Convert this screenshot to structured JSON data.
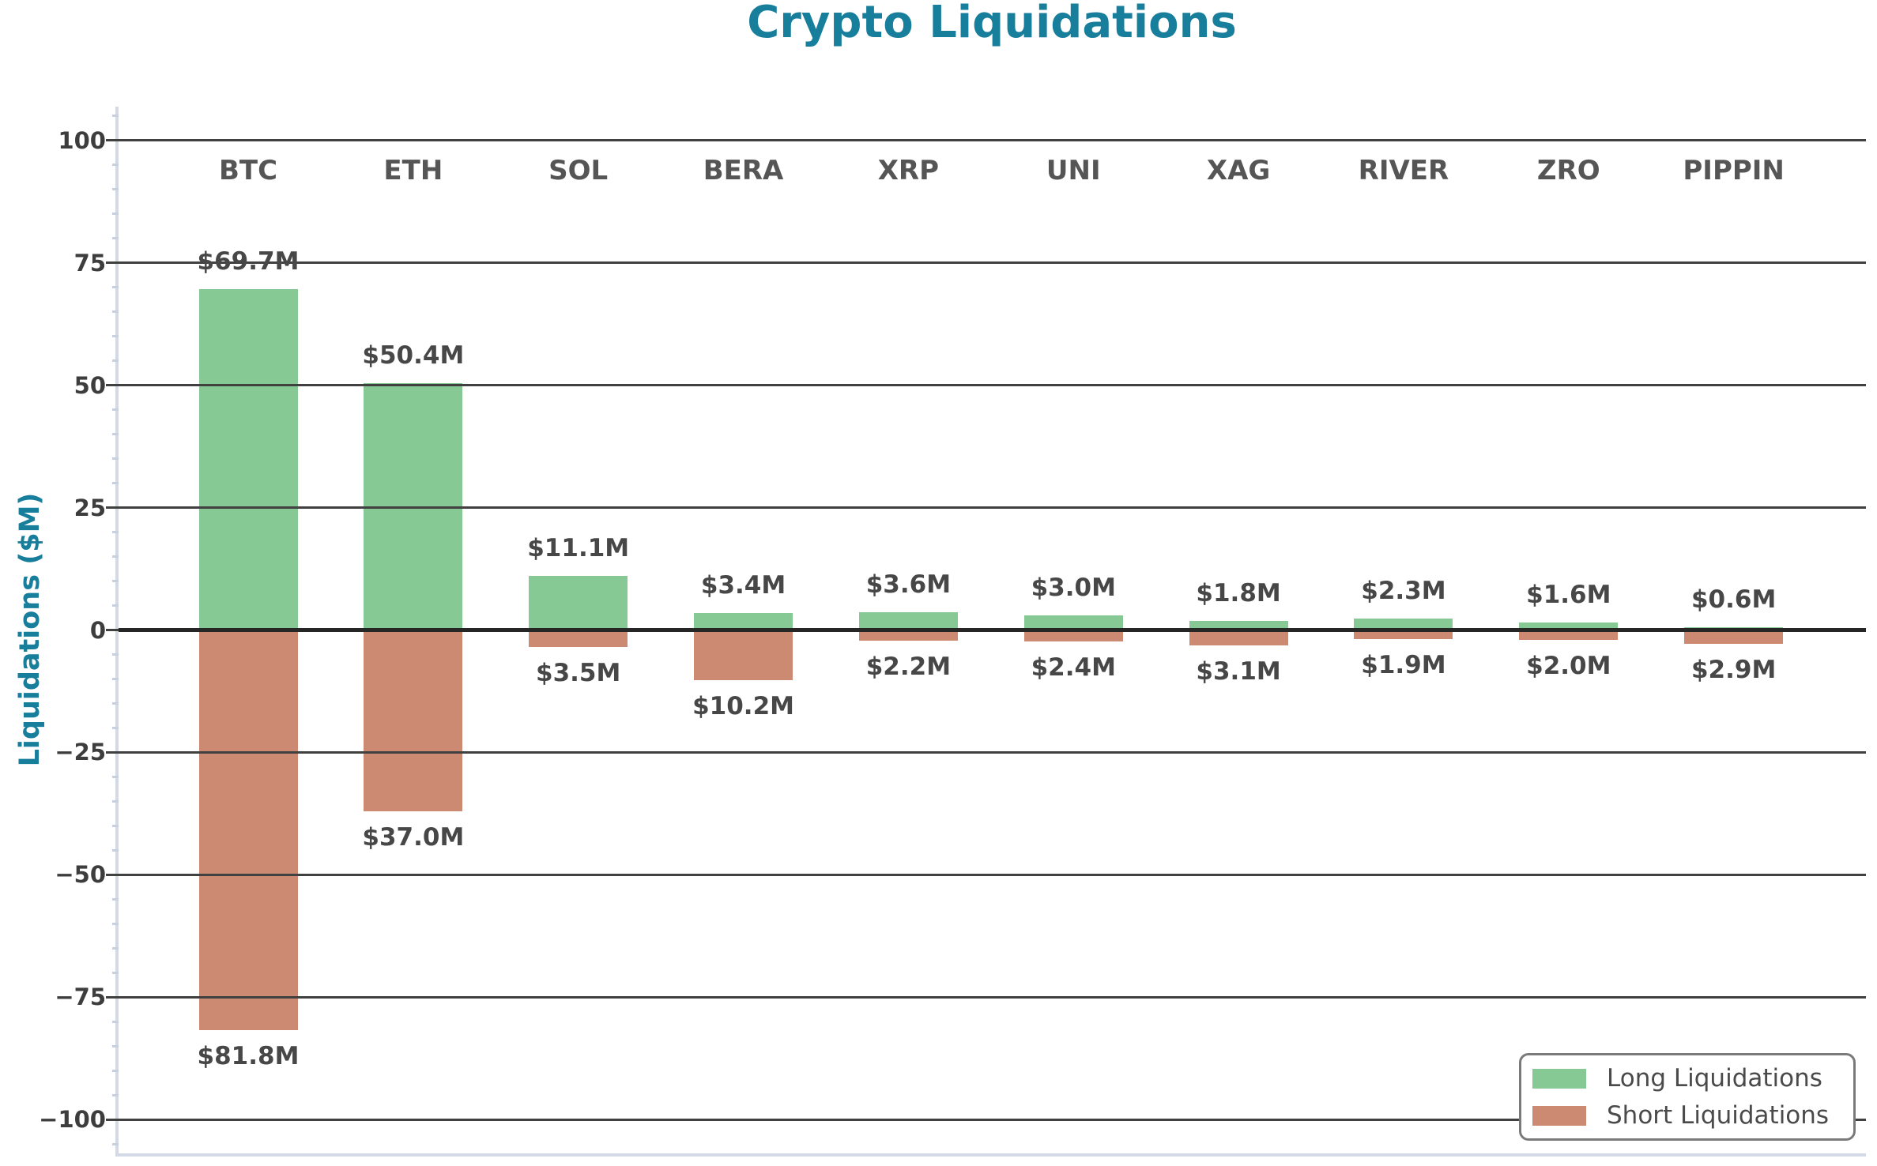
{
  "chart_data": {
    "type": "bar",
    "title": "Crypto Liquidations",
    "ylabel": "Liquidations ($M)",
    "categories": [
      "BTC",
      "ETH",
      "SOL",
      "BERA",
      "XRP",
      "UNI",
      "XAG",
      "RIVER",
      "ZRO",
      "PIPPIN"
    ],
    "series": [
      {
        "name": "Long Liquidations",
        "direction": "up",
        "color": "#86c994",
        "values": [
          69.7,
          50.4,
          11.1,
          3.4,
          3.6,
          3.0,
          1.8,
          2.3,
          1.6,
          0.6
        ],
        "labels": [
          "$69.7M",
          "$50.4M",
          "$11.1M",
          "$3.4M",
          "$3.6M",
          "$3.0M",
          "$1.8M",
          "$2.3M",
          "$1.6M",
          "$0.6M"
        ]
      },
      {
        "name": "Short Liquidations",
        "direction": "down",
        "color": "#cb8a71",
        "values": [
          81.8,
          37.0,
          3.5,
          10.2,
          2.2,
          2.4,
          3.1,
          1.9,
          2.0,
          2.9
        ],
        "labels": [
          "$81.8M",
          "$37.0M",
          "$3.5M",
          "$10.2M",
          "$2.2M",
          "$2.4M",
          "$3.1M",
          "$1.9M",
          "$2.0M",
          "$2.9M"
        ]
      }
    ],
    "yticks": [
      100,
      75,
      50,
      25,
      0,
      -25,
      -50,
      -75,
      -100
    ],
    "minor_tick_step": 5,
    "ylim": [
      -106.9,
      106.9
    ],
    "grid": true,
    "legend_position": "lower right"
  },
  "colors": {
    "title": "#177e9b",
    "long_bar": "#86c994",
    "short_bar": "#cb8a71",
    "grid": "#404040",
    "zero_line": "#262626",
    "spine": "#d3dae6",
    "tick_text": "#3d3d3d",
    "label_text": "#474747",
    "legend_border": "#7a7a7a"
  }
}
